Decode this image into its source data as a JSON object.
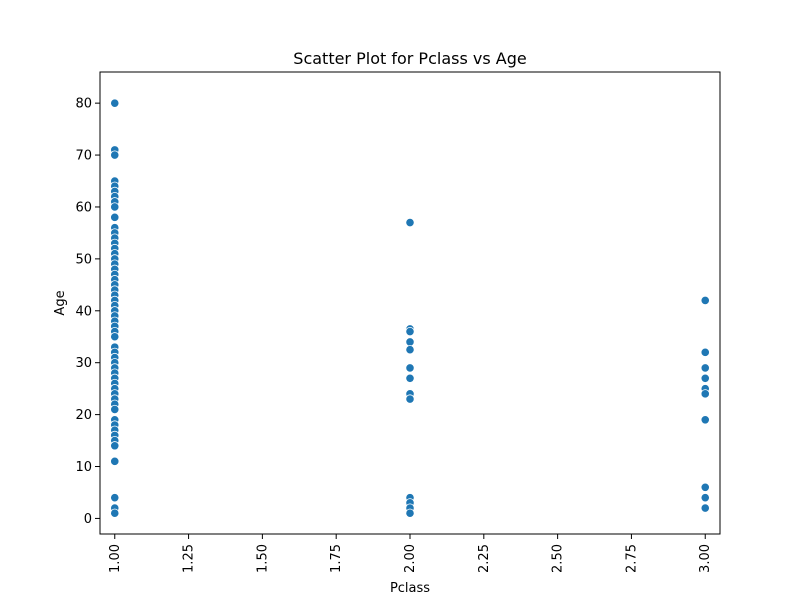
{
  "chart_data": {
    "type": "scatter",
    "title": "Scatter Plot for Pclass vs Age",
    "xlabel": "Pclass",
    "ylabel": "Age",
    "xlim": [
      0.95,
      3.05
    ],
    "ylim": [
      -3,
      86
    ],
    "xticks": [
      1.0,
      1.25,
      1.5,
      1.75,
      2.0,
      2.25,
      2.5,
      2.75,
      3.0
    ],
    "xtick_labels": [
      "1.00",
      "1.25",
      "1.50",
      "1.75",
      "2.00",
      "2.25",
      "2.50",
      "2.75",
      "3.00"
    ],
    "yticks": [
      0,
      10,
      20,
      30,
      40,
      50,
      60,
      70,
      80
    ],
    "ytick_labels": [
      "0",
      "10",
      "20",
      "30",
      "40",
      "50",
      "60",
      "70",
      "80"
    ],
    "grid": false,
    "point_color": "#1f77b4",
    "points": [
      {
        "x": 1,
        "y": 80
      },
      {
        "x": 1,
        "y": 71
      },
      {
        "x": 1,
        "y": 70
      },
      {
        "x": 1,
        "y": 65
      },
      {
        "x": 1,
        "y": 64
      },
      {
        "x": 1,
        "y": 63
      },
      {
        "x": 1,
        "y": 62
      },
      {
        "x": 1,
        "y": 61
      },
      {
        "x": 1,
        "y": 60
      },
      {
        "x": 1,
        "y": 58
      },
      {
        "x": 1,
        "y": 56
      },
      {
        "x": 1,
        "y": 55
      },
      {
        "x": 1,
        "y": 54
      },
      {
        "x": 1,
        "y": 53
      },
      {
        "x": 1,
        "y": 52
      },
      {
        "x": 1,
        "y": 51
      },
      {
        "x": 1,
        "y": 50
      },
      {
        "x": 1,
        "y": 49
      },
      {
        "x": 1,
        "y": 48
      },
      {
        "x": 1,
        "y": 47
      },
      {
        "x": 1,
        "y": 46
      },
      {
        "x": 1,
        "y": 45
      },
      {
        "x": 1,
        "y": 44
      },
      {
        "x": 1,
        "y": 43
      },
      {
        "x": 1,
        "y": 42
      },
      {
        "x": 1,
        "y": 41
      },
      {
        "x": 1,
        "y": 40
      },
      {
        "x": 1,
        "y": 39
      },
      {
        "x": 1,
        "y": 38
      },
      {
        "x": 1,
        "y": 37
      },
      {
        "x": 1,
        "y": 36
      },
      {
        "x": 1,
        "y": 35
      },
      {
        "x": 1,
        "y": 33
      },
      {
        "x": 1,
        "y": 32
      },
      {
        "x": 1,
        "y": 31
      },
      {
        "x": 1,
        "y": 30
      },
      {
        "x": 1,
        "y": 29
      },
      {
        "x": 1,
        "y": 28
      },
      {
        "x": 1,
        "y": 27
      },
      {
        "x": 1,
        "y": 26
      },
      {
        "x": 1,
        "y": 25
      },
      {
        "x": 1,
        "y": 24
      },
      {
        "x": 1,
        "y": 23
      },
      {
        "x": 1,
        "y": 22
      },
      {
        "x": 1,
        "y": 21
      },
      {
        "x": 1,
        "y": 19
      },
      {
        "x": 1,
        "y": 18
      },
      {
        "x": 1,
        "y": 17
      },
      {
        "x": 1,
        "y": 16
      },
      {
        "x": 1,
        "y": 15
      },
      {
        "x": 1,
        "y": 14
      },
      {
        "x": 1,
        "y": 11
      },
      {
        "x": 1,
        "y": 4
      },
      {
        "x": 1,
        "y": 2
      },
      {
        "x": 1,
        "y": 1
      },
      {
        "x": 2,
        "y": 57
      },
      {
        "x": 2,
        "y": 36.5
      },
      {
        "x": 2,
        "y": 36
      },
      {
        "x": 2,
        "y": 34
      },
      {
        "x": 2,
        "y": 32.5
      },
      {
        "x": 2,
        "y": 29
      },
      {
        "x": 2,
        "y": 27
      },
      {
        "x": 2,
        "y": 24
      },
      {
        "x": 2,
        "y": 23
      },
      {
        "x": 2,
        "y": 4
      },
      {
        "x": 2,
        "y": 3
      },
      {
        "x": 2,
        "y": 2
      },
      {
        "x": 2,
        "y": 1
      },
      {
        "x": 3,
        "y": 42
      },
      {
        "x": 3,
        "y": 32
      },
      {
        "x": 3,
        "y": 29
      },
      {
        "x": 3,
        "y": 27
      },
      {
        "x": 3,
        "y": 25
      },
      {
        "x": 3,
        "y": 24
      },
      {
        "x": 3,
        "y": 19
      },
      {
        "x": 3,
        "y": 6
      },
      {
        "x": 3,
        "y": 4
      },
      {
        "x": 3,
        "y": 2
      }
    ]
  }
}
